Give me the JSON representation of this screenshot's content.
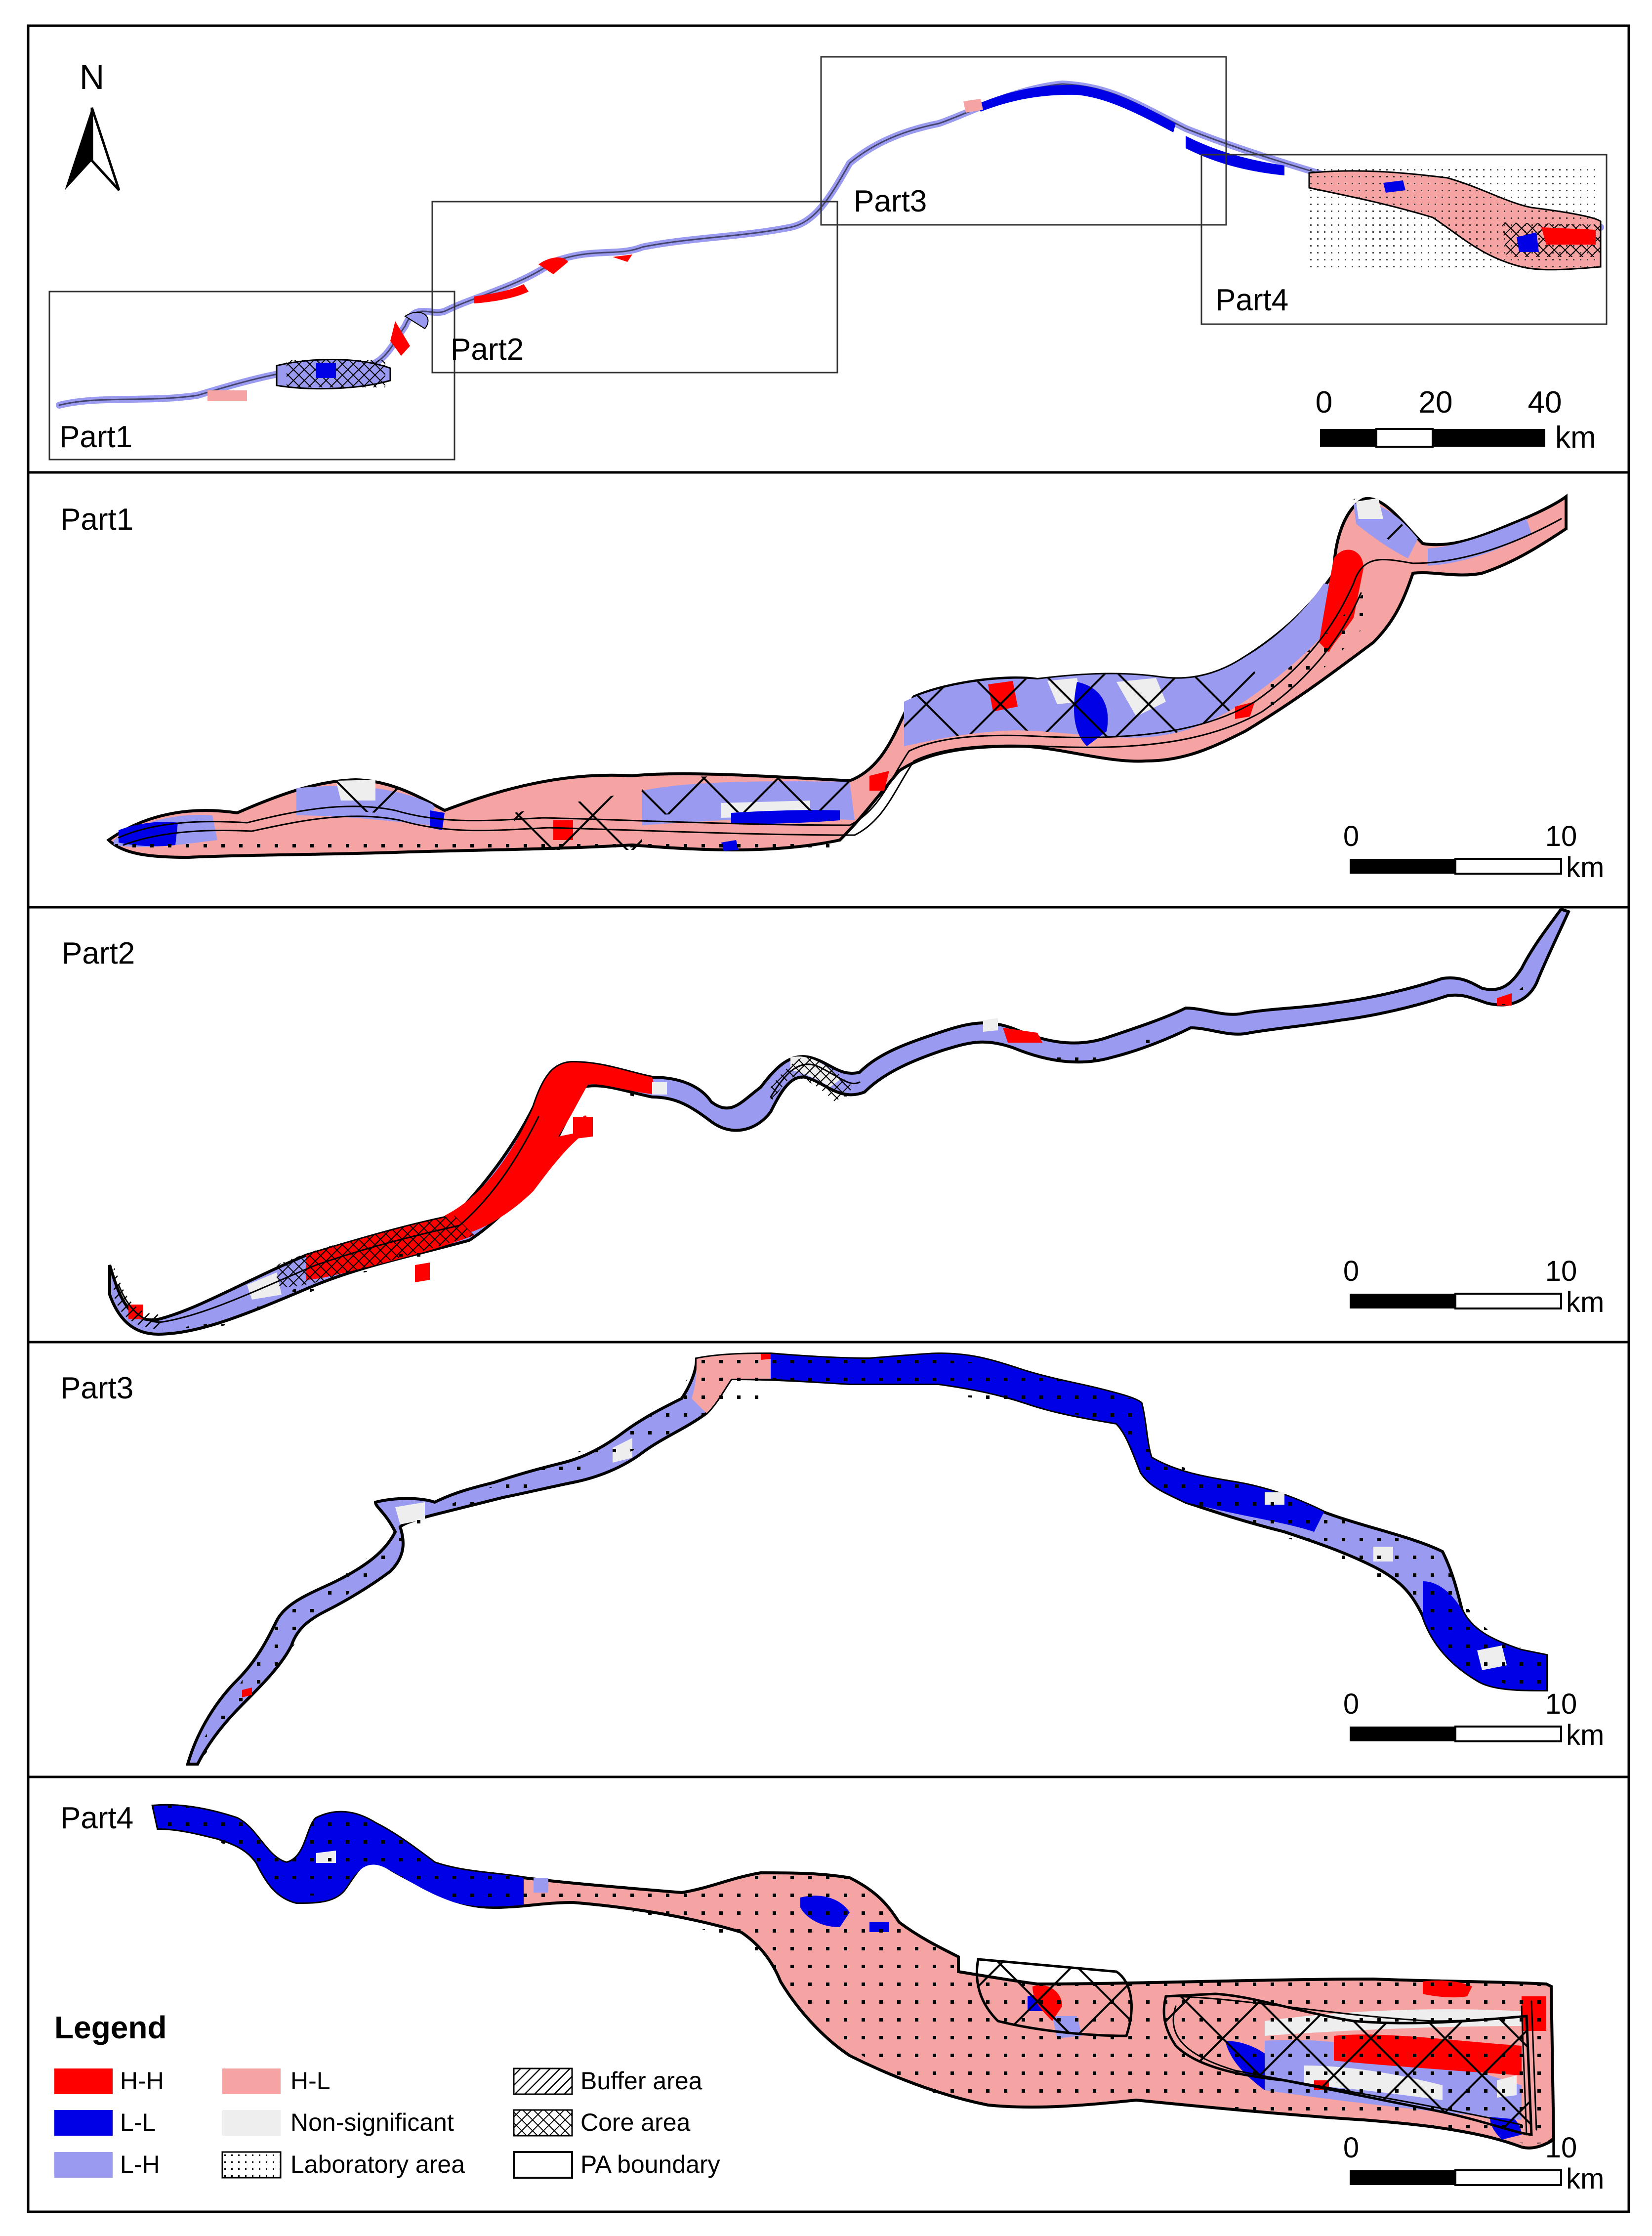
{
  "overview": {
    "north_label": "N",
    "inset_labels": [
      "Part1",
      "Part2",
      "Part3",
      "Part4"
    ],
    "scale": {
      "ticks": [
        "0",
        "20",
        "40"
      ],
      "unit": "km"
    }
  },
  "panels": [
    {
      "title": "Part1",
      "scale": {
        "start": "0",
        "end": "10",
        "unit": "km"
      }
    },
    {
      "title": "Part2",
      "scale": {
        "start": "0",
        "end": "10",
        "unit": "km"
      }
    },
    {
      "title": "Part3",
      "scale": {
        "start": "0",
        "end": "10",
        "unit": "km"
      }
    },
    {
      "title": "Part4",
      "scale": {
        "start": "0",
        "end": "10",
        "unit": "km"
      }
    }
  ],
  "legend": {
    "title": "Legend",
    "items": [
      {
        "label": "H-H",
        "swatch": "hh"
      },
      {
        "label": "L-L",
        "swatch": "ll"
      },
      {
        "label": "L-H",
        "swatch": "lh"
      },
      {
        "label": "H-L",
        "swatch": "hl"
      },
      {
        "label": "Non-significant",
        "swatch": "ns"
      },
      {
        "label": "Laboratory area",
        "swatch": "lab"
      },
      {
        "label": "Buffer area",
        "swatch": "buffer"
      },
      {
        "label": "Core area",
        "swatch": "core"
      },
      {
        "label": "PA boundary",
        "swatch": "pa"
      }
    ]
  },
  "colors": {
    "hh": "#ff0000",
    "ll": "#0000e6",
    "lh": "#9a9af0",
    "hl": "#f5a3a3",
    "ns": "#eeeeee",
    "outline": "#000000"
  }
}
